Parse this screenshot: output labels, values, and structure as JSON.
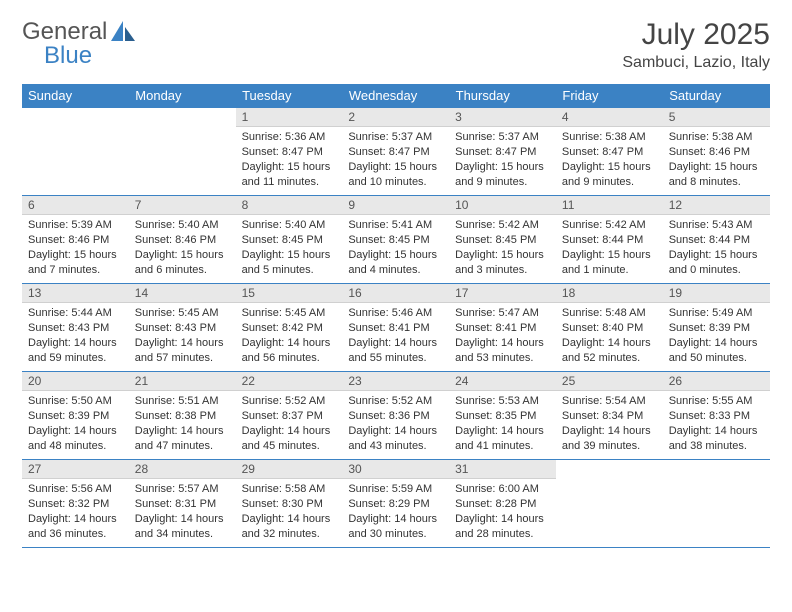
{
  "brand": {
    "part1": "General",
    "part2": "Blue"
  },
  "title": "July 2025",
  "location": "Sambuci, Lazio, Italy",
  "colors": {
    "accent": "#3b82c4",
    "daynum_bg": "#e8e8e8",
    "text": "#333333"
  },
  "weekdays": [
    "Sunday",
    "Monday",
    "Tuesday",
    "Wednesday",
    "Thursday",
    "Friday",
    "Saturday"
  ],
  "weeks": [
    [
      null,
      null,
      {
        "n": "1",
        "sr": "5:36 AM",
        "ss": "8:47 PM",
        "dl": "15 hours and 11 minutes."
      },
      {
        "n": "2",
        "sr": "5:37 AM",
        "ss": "8:47 PM",
        "dl": "15 hours and 10 minutes."
      },
      {
        "n": "3",
        "sr": "5:37 AM",
        "ss": "8:47 PM",
        "dl": "15 hours and 9 minutes."
      },
      {
        "n": "4",
        "sr": "5:38 AM",
        "ss": "8:47 PM",
        "dl": "15 hours and 9 minutes."
      },
      {
        "n": "5",
        "sr": "5:38 AM",
        "ss": "8:46 PM",
        "dl": "15 hours and 8 minutes."
      }
    ],
    [
      {
        "n": "6",
        "sr": "5:39 AM",
        "ss": "8:46 PM",
        "dl": "15 hours and 7 minutes."
      },
      {
        "n": "7",
        "sr": "5:40 AM",
        "ss": "8:46 PM",
        "dl": "15 hours and 6 minutes."
      },
      {
        "n": "8",
        "sr": "5:40 AM",
        "ss": "8:45 PM",
        "dl": "15 hours and 5 minutes."
      },
      {
        "n": "9",
        "sr": "5:41 AM",
        "ss": "8:45 PM",
        "dl": "15 hours and 4 minutes."
      },
      {
        "n": "10",
        "sr": "5:42 AM",
        "ss": "8:45 PM",
        "dl": "15 hours and 3 minutes."
      },
      {
        "n": "11",
        "sr": "5:42 AM",
        "ss": "8:44 PM",
        "dl": "15 hours and 1 minute."
      },
      {
        "n": "12",
        "sr": "5:43 AM",
        "ss": "8:44 PM",
        "dl": "15 hours and 0 minutes."
      }
    ],
    [
      {
        "n": "13",
        "sr": "5:44 AM",
        "ss": "8:43 PM",
        "dl": "14 hours and 59 minutes."
      },
      {
        "n": "14",
        "sr": "5:45 AM",
        "ss": "8:43 PM",
        "dl": "14 hours and 57 minutes."
      },
      {
        "n": "15",
        "sr": "5:45 AM",
        "ss": "8:42 PM",
        "dl": "14 hours and 56 minutes."
      },
      {
        "n": "16",
        "sr": "5:46 AM",
        "ss": "8:41 PM",
        "dl": "14 hours and 55 minutes."
      },
      {
        "n": "17",
        "sr": "5:47 AM",
        "ss": "8:41 PM",
        "dl": "14 hours and 53 minutes."
      },
      {
        "n": "18",
        "sr": "5:48 AM",
        "ss": "8:40 PM",
        "dl": "14 hours and 52 minutes."
      },
      {
        "n": "19",
        "sr": "5:49 AM",
        "ss": "8:39 PM",
        "dl": "14 hours and 50 minutes."
      }
    ],
    [
      {
        "n": "20",
        "sr": "5:50 AM",
        "ss": "8:39 PM",
        "dl": "14 hours and 48 minutes."
      },
      {
        "n": "21",
        "sr": "5:51 AM",
        "ss": "8:38 PM",
        "dl": "14 hours and 47 minutes."
      },
      {
        "n": "22",
        "sr": "5:52 AM",
        "ss": "8:37 PM",
        "dl": "14 hours and 45 minutes."
      },
      {
        "n": "23",
        "sr": "5:52 AM",
        "ss": "8:36 PM",
        "dl": "14 hours and 43 minutes."
      },
      {
        "n": "24",
        "sr": "5:53 AM",
        "ss": "8:35 PM",
        "dl": "14 hours and 41 minutes."
      },
      {
        "n": "25",
        "sr": "5:54 AM",
        "ss": "8:34 PM",
        "dl": "14 hours and 39 minutes."
      },
      {
        "n": "26",
        "sr": "5:55 AM",
        "ss": "8:33 PM",
        "dl": "14 hours and 38 minutes."
      }
    ],
    [
      {
        "n": "27",
        "sr": "5:56 AM",
        "ss": "8:32 PM",
        "dl": "14 hours and 36 minutes."
      },
      {
        "n": "28",
        "sr": "5:57 AM",
        "ss": "8:31 PM",
        "dl": "14 hours and 34 minutes."
      },
      {
        "n": "29",
        "sr": "5:58 AM",
        "ss": "8:30 PM",
        "dl": "14 hours and 32 minutes."
      },
      {
        "n": "30",
        "sr": "5:59 AM",
        "ss": "8:29 PM",
        "dl": "14 hours and 30 minutes."
      },
      {
        "n": "31",
        "sr": "6:00 AM",
        "ss": "8:28 PM",
        "dl": "14 hours and 28 minutes."
      },
      null,
      null
    ]
  ],
  "labels": {
    "sunrise": "Sunrise: ",
    "sunset": "Sunset: ",
    "daylight": "Daylight: "
  }
}
